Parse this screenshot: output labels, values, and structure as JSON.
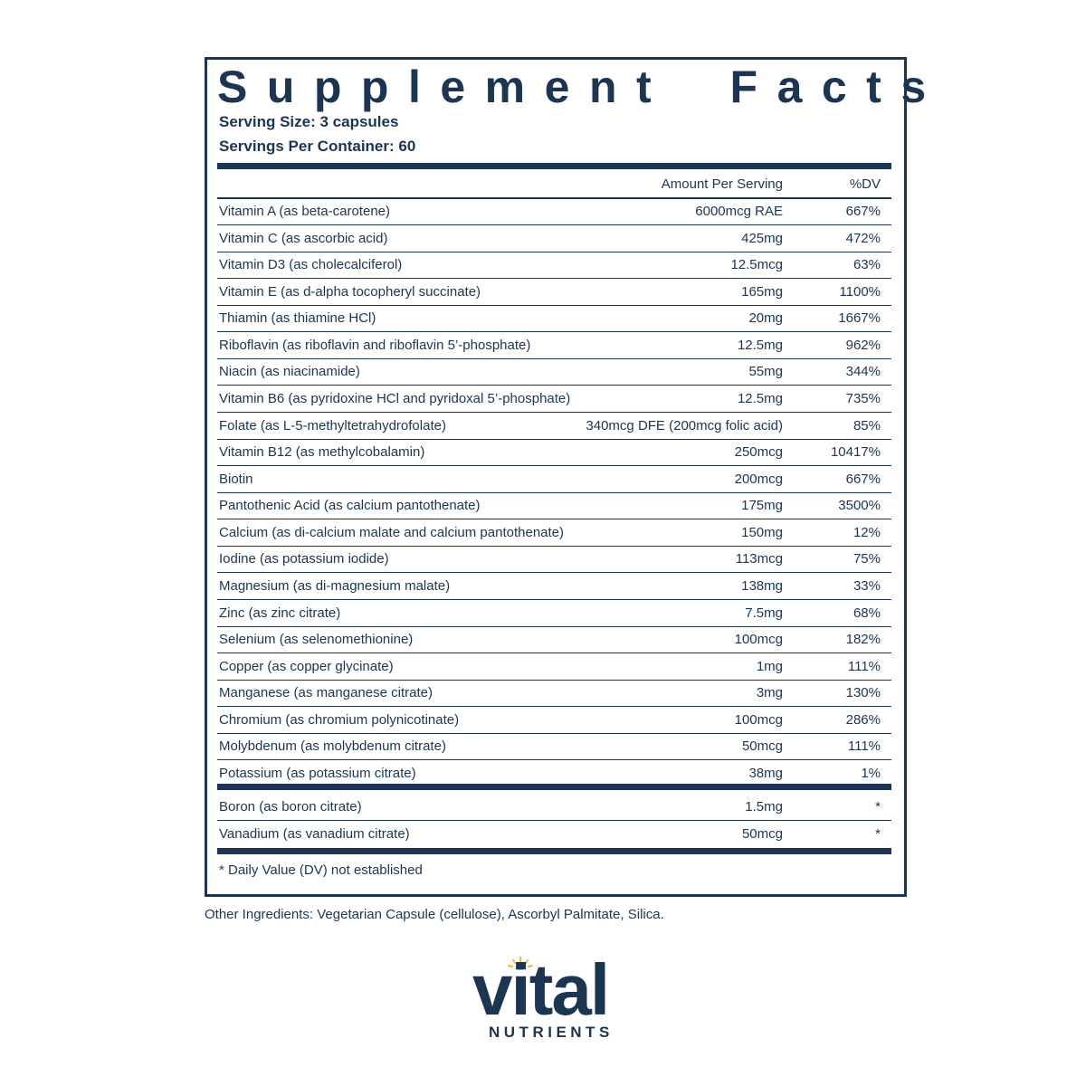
{
  "header": {
    "title": "Supplement Facts",
    "serving_size": "Serving Size: 3 capsules",
    "servings_per_container": "Servings Per Container: 60"
  },
  "table": {
    "columns": [
      "Amount Per Serving",
      "%DV"
    ],
    "rows": [
      [
        "Vitamin A (as beta-carotene)",
        "6000mcg RAE",
        "667%"
      ],
      [
        "Vitamin C (as ascorbic acid)",
        "425mg",
        "472%"
      ],
      [
        "Vitamin D3 (as cholecalciferol)",
        "12.5mcg",
        "63%"
      ],
      [
        "Vitamin E (as d-alpha tocopheryl succinate)",
        "165mg",
        "1100%"
      ],
      [
        "Thiamin (as thiamine HCl)",
        "20mg",
        "1667%"
      ],
      [
        "Riboflavin (as riboflavin and riboflavin 5’-phosphate)",
        "12.5mg",
        "962%"
      ],
      [
        "Niacin (as niacinamide)",
        "55mg",
        "344%"
      ],
      [
        "Vitamin B6 (as pyridoxine HCl and pyridoxal 5’-phosphate)",
        "12.5mg",
        "735%"
      ],
      [
        "Folate (as L-5-methyltetrahydrofolate)",
        "340mcg DFE (200mcg folic acid)",
        "85%"
      ],
      [
        "Vitamin B12 (as methylcobalamin)",
        "250mcg",
        "10417%"
      ],
      [
        "Biotin",
        "200mcg",
        "667%"
      ],
      [
        "Pantothenic Acid (as calcium pantothenate)",
        "175mg",
        "3500%"
      ],
      [
        "Calcium (as di-calcium malate and calcium pantothenate)",
        "150mg",
        "12%"
      ],
      [
        "Iodine (as potassium iodide)",
        "113mcg",
        "75%"
      ],
      [
        "Magnesium (as di-magnesium malate)",
        "138mg",
        "33%"
      ],
      [
        "Zinc (as zinc citrate)",
        "7.5mg",
        "68%"
      ],
      [
        "Selenium (as selenomethionine)",
        "100mcg",
        "182%"
      ],
      [
        "Copper (as copper glycinate)",
        "1mg",
        "111%"
      ],
      [
        "Manganese (as manganese citrate)",
        "3mg",
        "130%"
      ],
      [
        "Chromium (as chromium polynicotinate)",
        "100mcg",
        "286%"
      ],
      [
        "Molybdenum (as molybdenum citrate)",
        "50mcg",
        "111%"
      ],
      [
        "Potassium (as potassium citrate)",
        "38mg",
        "1%"
      ]
    ],
    "other_rows": [
      [
        "Boron (as boron citrate)",
        "1.5mg",
        "*"
      ],
      [
        "Vanadium (as vanadium citrate)",
        "50mcg",
        "*"
      ]
    ],
    "footnote": "* Daily Value (DV) not established"
  },
  "other_ingredients": "Other Ingredients: Vegetarian Capsule (cellulose), Ascorbyl Palmitate, Silica.",
  "logo": {
    "brand": "vital",
    "sub": "NUTRIENTS"
  }
}
